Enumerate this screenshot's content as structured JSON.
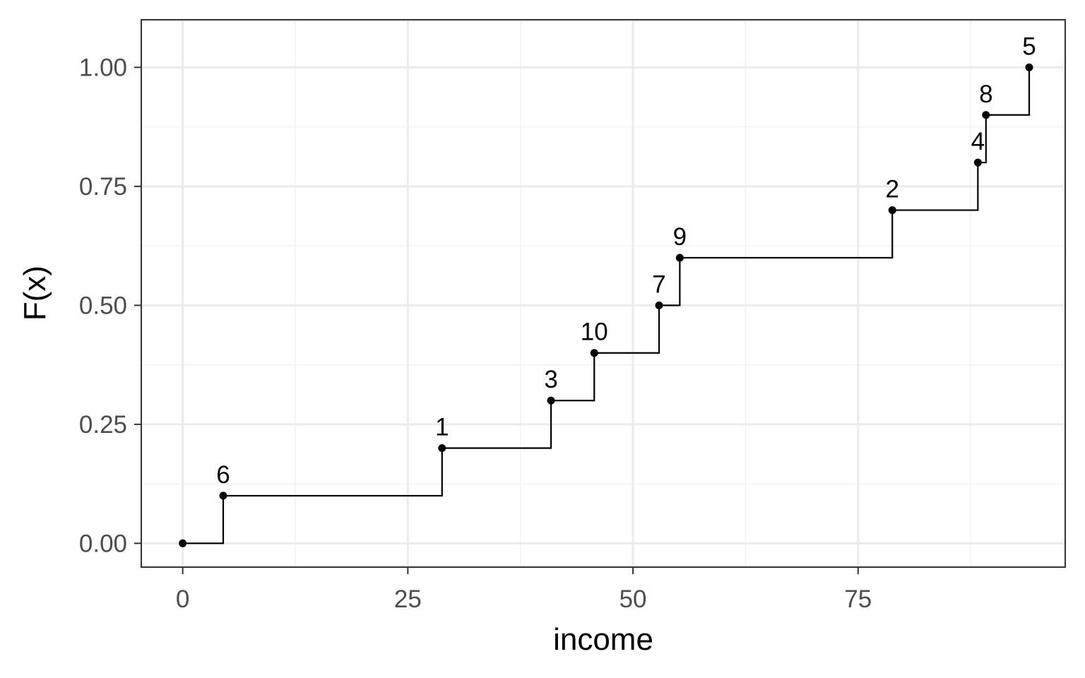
{
  "chart_data": {
    "type": "line",
    "subtype": "step",
    "xlabel": "income",
    "ylabel": "F(x)",
    "xlim": [
      -4.6,
      98
    ],
    "ylim": [
      -0.05,
      1.1
    ],
    "x_ticks": [
      0,
      25,
      50,
      75
    ],
    "x_tick_labels": [
      "0",
      "25",
      "50",
      "75"
    ],
    "x_minor_ticks": [
      12.5,
      37.5,
      62.5,
      87.5
    ],
    "y_ticks": [
      0,
      0.25,
      0.5,
      0.75,
      1.0
    ],
    "y_tick_labels": [
      "0.00",
      "0.25",
      "0.50",
      "0.75",
      "1.00"
    ],
    "y_minor_ticks": [
      0.125,
      0.375,
      0.625,
      0.875
    ],
    "grid": true,
    "theme": "bw",
    "colors": {
      "panel_border": "#333333",
      "grid_major": "#ebebeb",
      "grid_minor": "#f2f2f2",
      "line": "#000000",
      "tick_text": "#4d4d4d"
    },
    "points": [
      {
        "x": 0,
        "y": 0,
        "label": ""
      },
      {
        "x": 4.5,
        "y": 0.1,
        "label": "6"
      },
      {
        "x": 28.8,
        "y": 0.2,
        "label": "1"
      },
      {
        "x": 40.9,
        "y": 0.3,
        "label": "3"
      },
      {
        "x": 45.7,
        "y": 0.4,
        "label": "10"
      },
      {
        "x": 52.9,
        "y": 0.5,
        "label": "7"
      },
      {
        "x": 55.2,
        "y": 0.6,
        "label": "9"
      },
      {
        "x": 78.8,
        "y": 0.7,
        "label": "2"
      },
      {
        "x": 88.3,
        "y": 0.8,
        "label": "4"
      },
      {
        "x": 89.2,
        "y": 0.9,
        "label": "8"
      },
      {
        "x": 94.0,
        "y": 1.0,
        "label": "5"
      }
    ]
  }
}
